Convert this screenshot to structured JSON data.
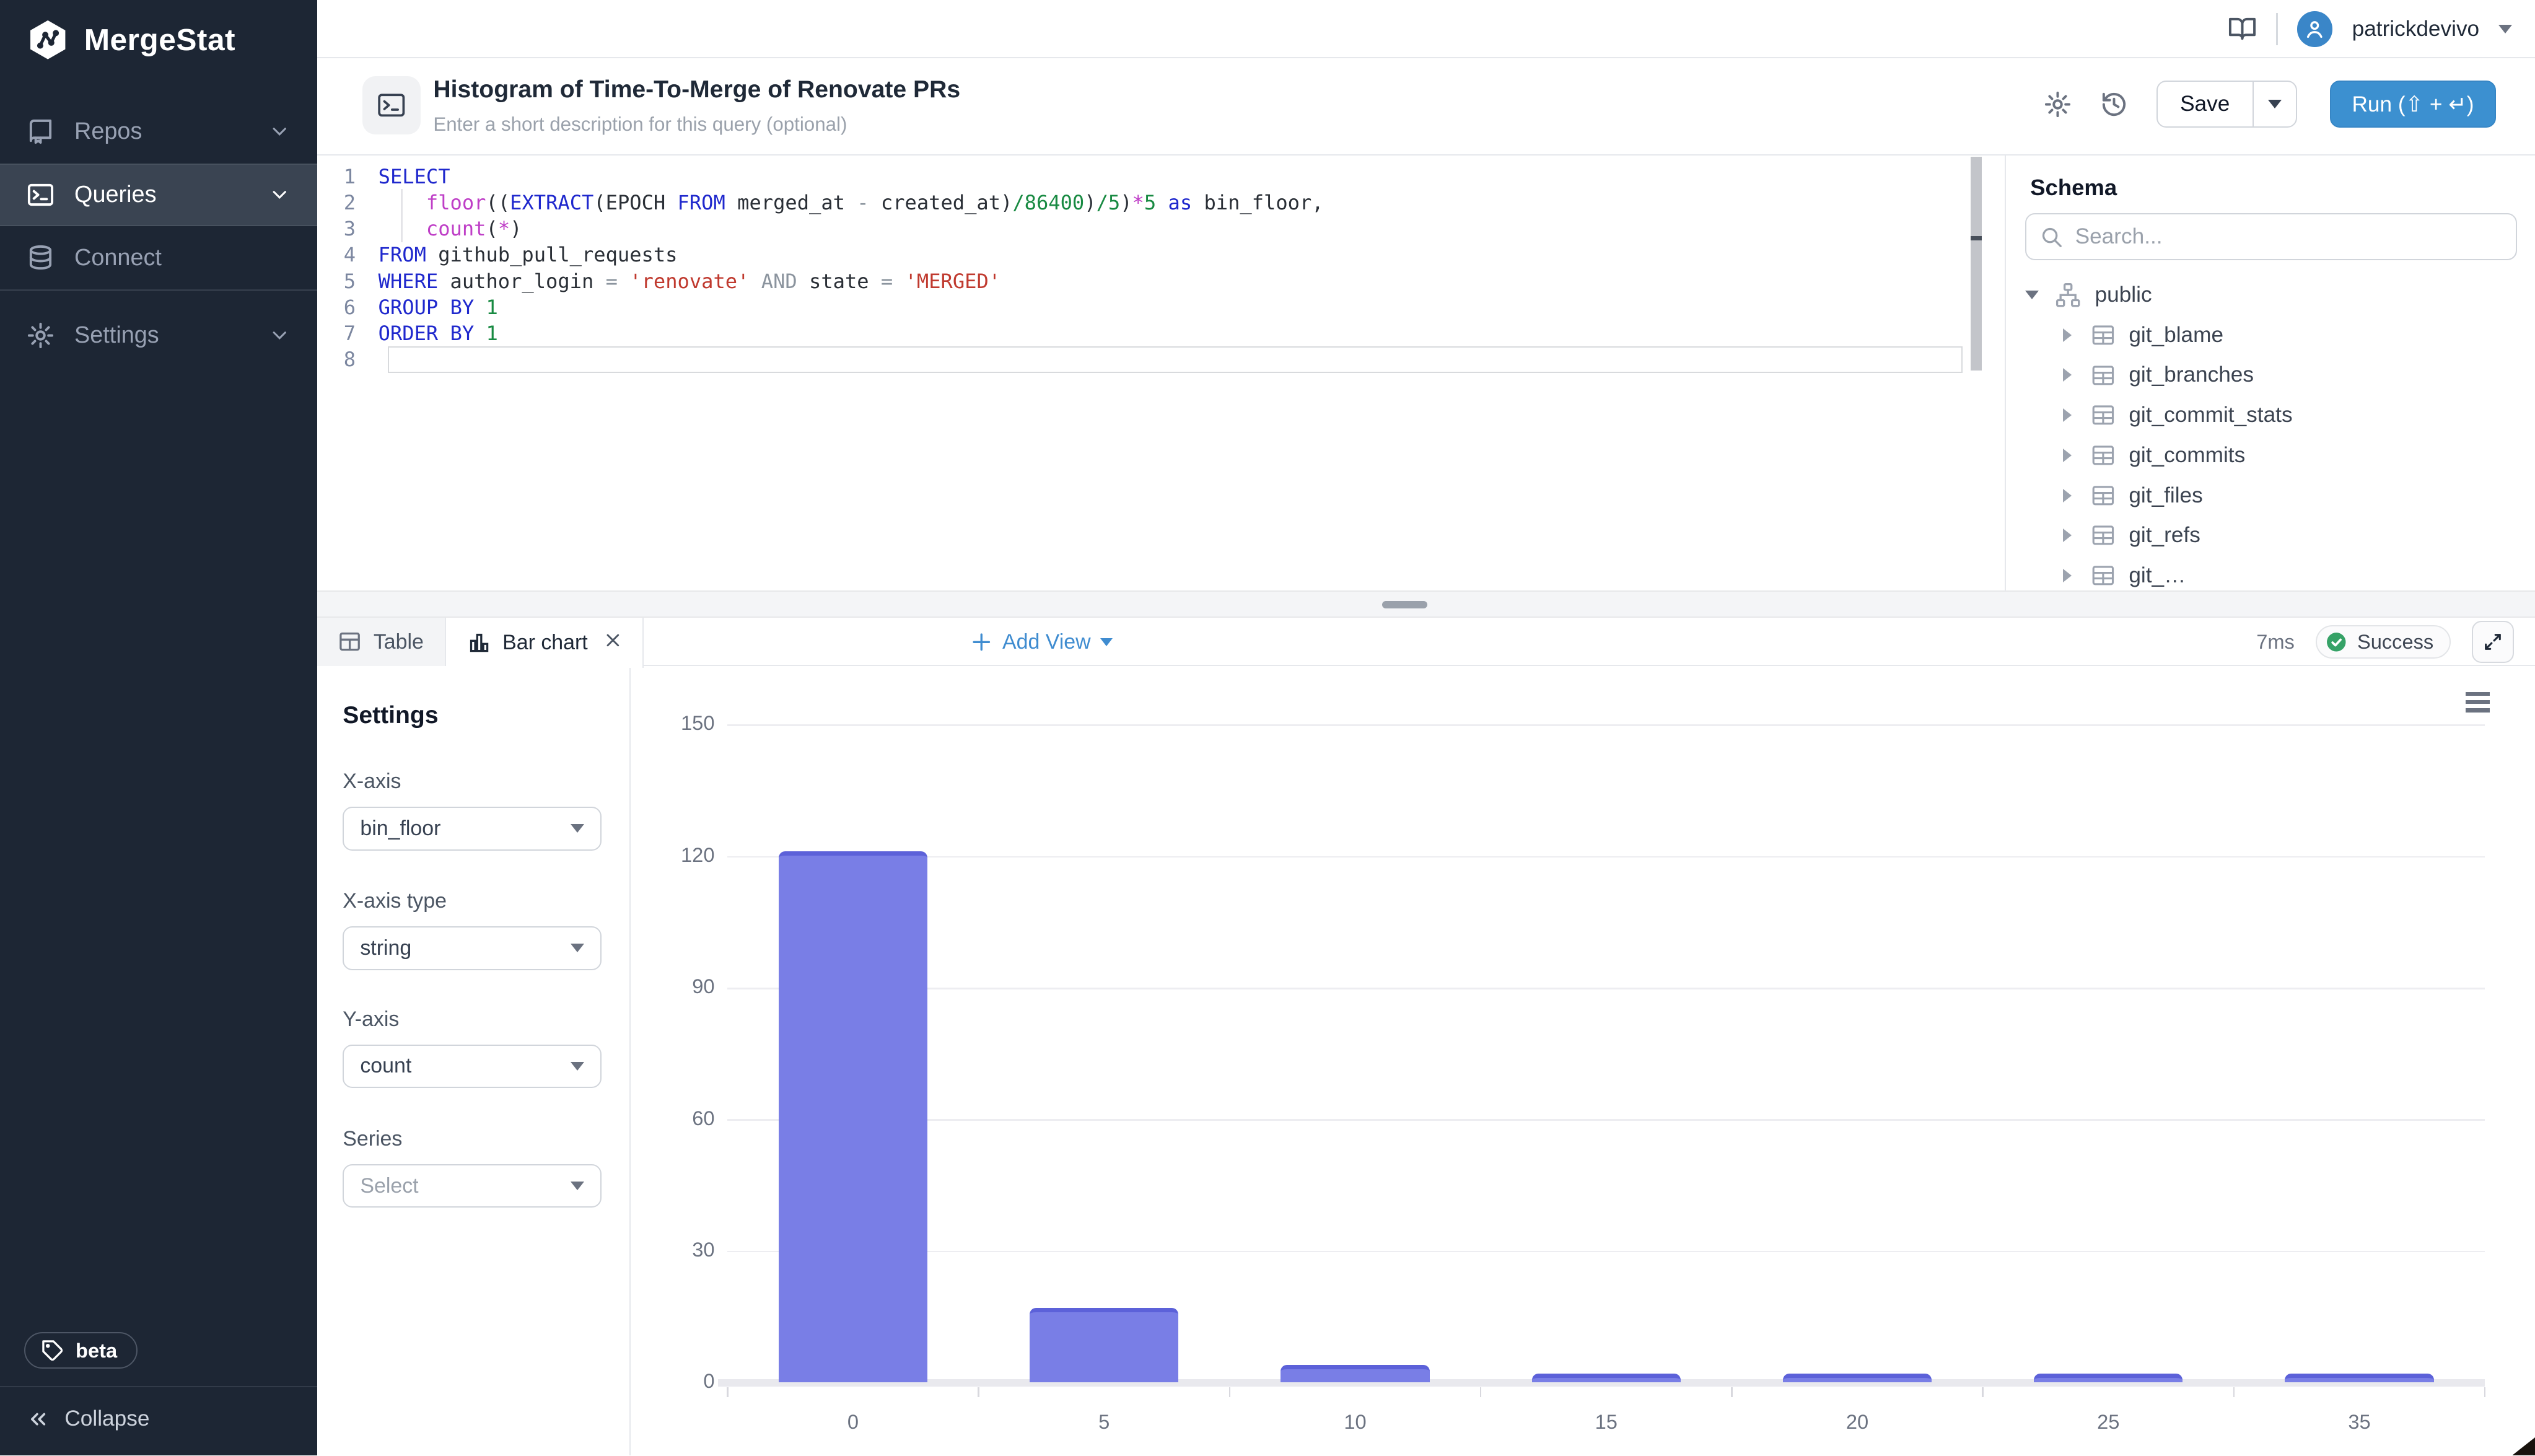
{
  "sidebar": {
    "logo": "MergeStat",
    "items": [
      {
        "label": "Repos",
        "icon": "repo-icon",
        "has_chevron": true,
        "active": false
      },
      {
        "label": "Queries",
        "icon": "terminal-icon",
        "has_chevron": true,
        "active": true
      },
      {
        "label": "Connect",
        "icon": "database-icon",
        "has_chevron": false,
        "active": false
      },
      {
        "label": "Settings",
        "icon": "gear-icon",
        "has_chevron": true,
        "active": false
      }
    ],
    "beta_badge": "beta",
    "collapse_label": "Collapse"
  },
  "topbar": {
    "username": "patrickdevivo"
  },
  "query_header": {
    "title": "Histogram of Time-To-Merge of Renovate PRs",
    "description_placeholder": "Enter a short description for this query (optional)",
    "save_label": "Save",
    "run_label": "Run (⇧ + ↵)"
  },
  "editor": {
    "lines": [
      {
        "n": "1",
        "tokens": [
          [
            "SELECT",
            "k"
          ]
        ]
      },
      {
        "n": "2",
        "tokens": [
          [
            "    ",
            "p"
          ],
          [
            "floor",
            "f"
          ],
          [
            "((",
            "p"
          ],
          [
            "EXTRACT",
            "k"
          ],
          [
            "(EPOCH ",
            "p"
          ],
          [
            "FROM",
            "k"
          ],
          [
            " merged_at ",
            "p"
          ],
          [
            "-",
            "o"
          ],
          [
            " created_at)",
            "p"
          ],
          [
            "/86400",
            "n"
          ],
          [
            ")",
            "p"
          ],
          [
            "/5",
            "n"
          ],
          [
            ")",
            "p"
          ],
          [
            "*",
            "f"
          ],
          [
            "5",
            "n"
          ],
          [
            " ",
            "p"
          ],
          [
            "as",
            "k"
          ],
          [
            " bin_floor,",
            "p"
          ]
        ]
      },
      {
        "n": "3",
        "tokens": [
          [
            "    ",
            "p"
          ],
          [
            "count",
            "f"
          ],
          [
            "(",
            "p"
          ],
          [
            "*",
            "f"
          ],
          [
            ")",
            "p"
          ]
        ]
      },
      {
        "n": "4",
        "tokens": [
          [
            "FROM",
            "k"
          ],
          [
            " github_pull_requests",
            "p"
          ]
        ]
      },
      {
        "n": "5",
        "tokens": [
          [
            "WHERE",
            "k"
          ],
          [
            " author_login ",
            "p"
          ],
          [
            "=",
            "o"
          ],
          [
            " ",
            "p"
          ],
          [
            "'renovate'",
            "s"
          ],
          [
            " ",
            "p"
          ],
          [
            "AND",
            "o"
          ],
          [
            " state ",
            "p"
          ],
          [
            "=",
            "o"
          ],
          [
            " ",
            "p"
          ],
          [
            "'MERGED'",
            "s"
          ]
        ]
      },
      {
        "n": "6",
        "tokens": [
          [
            "GROUP",
            "k"
          ],
          [
            " ",
            "p"
          ],
          [
            "BY",
            "k"
          ],
          [
            " ",
            "p"
          ],
          [
            "1",
            "n"
          ]
        ]
      },
      {
        "n": "7",
        "tokens": [
          [
            "ORDER",
            "k"
          ],
          [
            " ",
            "p"
          ],
          [
            "BY",
            "k"
          ],
          [
            " ",
            "p"
          ],
          [
            "1",
            "n"
          ]
        ]
      },
      {
        "n": "8",
        "tokens": [],
        "active": true
      }
    ]
  },
  "schema": {
    "heading": "Schema",
    "search_placeholder": "Search...",
    "root": "public",
    "tables": [
      "git_blame",
      "git_branches",
      "git_commit_stats",
      "git_commits",
      "git_files",
      "git_refs"
    ],
    "partial_table": "git_…"
  },
  "results": {
    "tabs": [
      {
        "label": "Table",
        "active": false
      },
      {
        "label": "Bar chart",
        "active": true,
        "closable": true
      }
    ],
    "add_view_label": "Add View",
    "duration": "7ms",
    "status": "Success"
  },
  "settings_panel": {
    "heading": "Settings",
    "fields": [
      {
        "label": "X-axis",
        "value": "bin_floor",
        "muted": false
      },
      {
        "label": "X-axis type",
        "value": "string",
        "muted": false
      },
      {
        "label": "Y-axis",
        "value": "count",
        "muted": false
      },
      {
        "label": "Series",
        "value": "Select",
        "muted": true
      }
    ]
  },
  "chart_data": {
    "type": "bar",
    "categories": [
      "0",
      "5",
      "10",
      "15",
      "20",
      "25",
      "35"
    ],
    "values": [
      121,
      17,
      4,
      2,
      2,
      2,
      2
    ],
    "title": "",
    "xlabel": "bin_floor",
    "ylabel": "count",
    "ylim": [
      0,
      150
    ],
    "ytick_step": 30,
    "grid": true,
    "legend": false,
    "bar_color": "#797ee6",
    "bar_cap_color": "#5c61d9"
  },
  "colors": {
    "sidebar_bg": "#1d2634",
    "sidebar_active_bg": "#3a4452",
    "accent_blue": "#3c90d0",
    "link_blue": "#3f8cd0",
    "success_green": "#36a267",
    "bar_purple": "#797ee6",
    "border": "#e6e8ec"
  }
}
